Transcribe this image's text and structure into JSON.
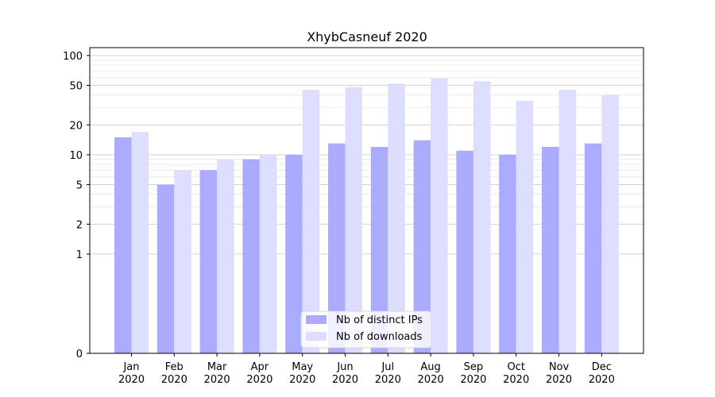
{
  "chart_data": {
    "type": "bar",
    "title": "XhybCasneuf 2020",
    "categories": [
      "Jan\n2020",
      "Feb\n2020",
      "Mar\n2020",
      "Apr\n2020",
      "May\n2020",
      "Jun\n2020",
      "Jul\n2020",
      "Aug\n2020",
      "Sep\n2020",
      "Oct\n2020",
      "Nov\n2020",
      "Dec\n2020"
    ],
    "series": [
      {
        "name": "Nb of distinct IPs",
        "color": "#aaaaff",
        "values": [
          15,
          5,
          7,
          9,
          10,
          13,
          12,
          14,
          11,
          10,
          12,
          13
        ]
      },
      {
        "name": "Nb of downloads",
        "color": "#ddddff",
        "values": [
          17,
          7,
          9,
          10,
          45,
          48,
          52,
          59,
          55,
          35,
          45,
          40
        ]
      }
    ],
    "xlabel": "",
    "ylabel": "",
    "y_scale": "symlog",
    "ylim": [
      0,
      120
    ],
    "y_ticks": [
      0,
      1,
      2,
      5,
      10,
      20,
      50,
      100
    ],
    "grid": "horizontal",
    "legend_position": "bottom-center"
  }
}
